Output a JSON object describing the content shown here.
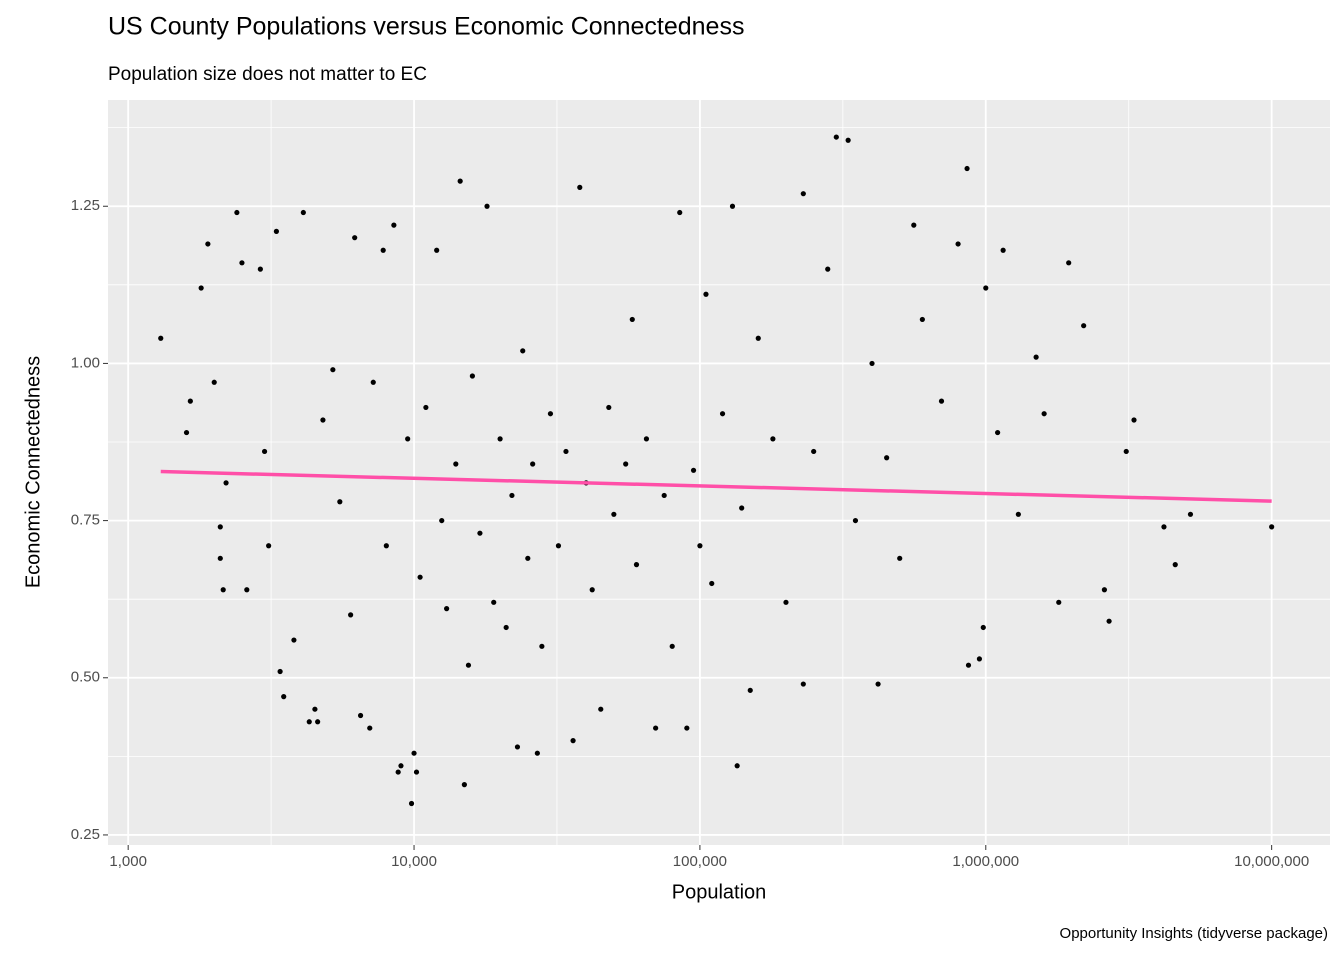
{
  "chart_data": {
    "type": "scatter",
    "title": "US County Populations versus Economic Connectedness",
    "subtitle": "Population size does not matter to EC",
    "x_label": "Population",
    "y_label": "Economic Connectedness",
    "caption": "Opportunity Insights (tidyverse package)",
    "x_scale": "log",
    "grid": true,
    "color": "#000000",
    "xlim": [
      850,
      16000000
    ],
    "ylim": [
      0.234,
      1.419
    ],
    "xticks": [
      {
        "value": 1000,
        "label": "1,000"
      },
      {
        "value": 10000,
        "label": "10,000"
      },
      {
        "value": 100000,
        "label": "100,000"
      },
      {
        "value": 1000000,
        "label": "1,000,000"
      },
      {
        "value": 10000000,
        "label": "10,000,000"
      }
    ],
    "yticks": [
      0.25,
      {
        "value": 0.5,
        "label": "0.50"
      },
      0.75,
      {
        "value": 1.0,
        "label": "1.00"
      },
      1.25
    ],
    "x": [
      1300,
      1600,
      1650,
      1800,
      1900,
      2000,
      2100,
      2100,
      2150,
      2200,
      2400,
      2500,
      2600,
      2900,
      3000,
      3100,
      3300,
      3400,
      3500,
      3800,
      4100,
      4300,
      4500,
      4600,
      4800,
      5200,
      5500,
      6000,
      6200,
      6500,
      7000,
      7200,
      7800,
      8000,
      8500,
      8800,
      9000,
      9500,
      9800,
      10000,
      10200,
      10500,
      11000,
      12000,
      12500,
      13000,
      14000,
      14500,
      15000,
      15500,
      16000,
      17000,
      18000,
      19000,
      20000,
      21000,
      22000,
      23000,
      24000,
      25000,
      26000,
      27000,
      28000,
      30000,
      32000,
      34000,
      36000,
      38000,
      40000,
      42000,
      45000,
      48000,
      50000,
      55000,
      58000,
      60000,
      65000,
      70000,
      75000,
      80000,
      85000,
      90000,
      95000,
      100000,
      105000,
      110000,
      120000,
      130000,
      135000,
      140000,
      150000,
      160000,
      180000,
      200000,
      230000,
      230000,
      250000,
      280000,
      300000,
      330000,
      350000,
      400000,
      420000,
      450000,
      500000,
      560000,
      600000,
      700000,
      800000,
      860000,
      870000,
      950000,
      980000,
      1000000,
      1100000,
      1150000,
      1300000,
      1500000,
      1600000,
      1800000,
      1950000,
      2200000,
      2600000,
      2700000,
      3100000,
      3300000,
      4200000,
      4600000,
      5200000,
      10000000
    ],
    "values": [
      1.04,
      0.89,
      0.94,
      1.12,
      1.19,
      0.97,
      0.74,
      0.69,
      0.64,
      0.81,
      1.24,
      1.16,
      0.64,
      1.15,
      0.86,
      0.71,
      1.21,
      0.51,
      0.47,
      0.56,
      1.24,
      0.43,
      0.45,
      0.43,
      0.91,
      0.99,
      0.78,
      0.6,
      1.2,
      0.44,
      0.42,
      0.97,
      1.18,
      0.71,
      1.22,
      0.35,
      0.36,
      0.88,
      0.3,
      0.38,
      0.35,
      0.66,
      0.93,
      1.18,
      0.75,
      0.61,
      0.84,
      1.29,
      0.33,
      0.52,
      0.98,
      0.73,
      1.25,
      0.62,
      0.88,
      0.58,
      0.79,
      0.39,
      1.02,
      0.69,
      0.84,
      0.38,
      0.55,
      0.92,
      0.71,
      0.86,
      0.4,
      1.28,
      0.81,
      0.64,
      0.45,
      0.93,
      0.76,
      0.84,
      1.07,
      0.68,
      0.88,
      0.42,
      0.79,
      0.55,
      1.24,
      0.42,
      0.83,
      0.71,
      1.11,
      0.65,
      0.92,
      1.25,
      0.36,
      0.77,
      0.48,
      1.04,
      0.88,
      0.62,
      1.27,
      0.49,
      0.86,
      1.15,
      1.36,
      1.355,
      0.75,
      1.0,
      0.49,
      0.85,
      0.69,
      1.22,
      1.07,
      0.94,
      1.19,
      1.31,
      0.52,
      0.53,
      0.58,
      1.12,
      0.89,
      1.18,
      0.76,
      1.01,
      0.92,
      0.62,
      1.16,
      1.06,
      0.64,
      0.59,
      0.86,
      0.91,
      0.74,
      0.68,
      0.76,
      0.74
    ],
    "trend": {
      "x": [
        1300,
        10000000
      ],
      "values": [
        0.828,
        0.781
      ],
      "color": "#ff4fa8"
    }
  }
}
